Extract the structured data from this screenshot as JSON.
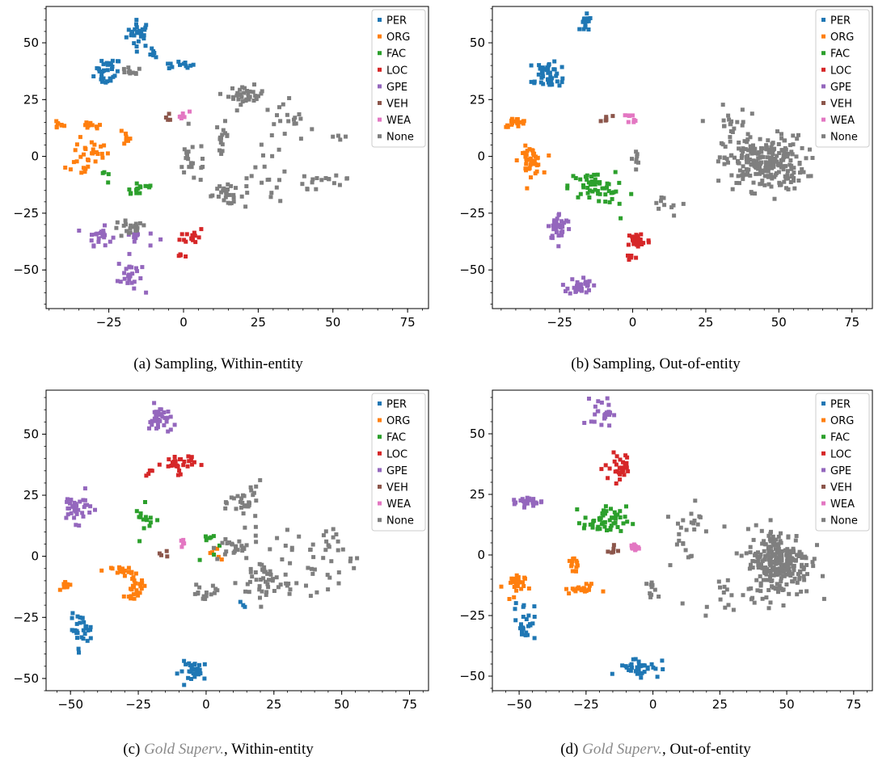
{
  "legend_entries": [
    "PER",
    "ORG",
    "FAC",
    "LOC",
    "GPE",
    "VEH",
    "WEA",
    "None"
  ],
  "colors": {
    "PER": "#1f77b4",
    "ORG": "#ff7f0e",
    "FAC": "#2ca02c",
    "LOC": "#d62728",
    "GPE": "#9467bd",
    "VEH": "#8c564b",
    "WEA": "#e377c2",
    "None": "#7f7f7f"
  },
  "captions": [
    {
      "pre": "(a) Sampling, Within-entity",
      "gold": "",
      "post": ""
    },
    {
      "pre": "(b) Sampling, Out-of-entity",
      "gold": "",
      "post": ""
    },
    {
      "pre": "(c) ",
      "gold": "Gold Superv.",
      "post": ", Within-entity"
    },
    {
      "pre": "(d) ",
      "gold": "Gold Superv.",
      "post": ", Out-of-entity"
    }
  ],
  "chart_data": [
    {
      "type": "scatter",
      "title": "",
      "xlim": [
        -46,
        82
      ],
      "ylim": [
        -67,
        66
      ],
      "xticks": [
        -25,
        0,
        25,
        50,
        75
      ],
      "yticks": [
        -50,
        -25,
        0,
        25,
        50
      ],
      "legend": "top-right",
      "clusters": [
        {
          "label": "PER",
          "cx": -15,
          "cy": 54,
          "sx": 2,
          "sy": 3,
          "n": 28
        },
        {
          "label": "PER",
          "cx": -25,
          "cy": 39,
          "sx": 2,
          "sy": 2,
          "n": 22
        },
        {
          "label": "PER",
          "cx": -26,
          "cy": 34,
          "sx": 2,
          "sy": 1,
          "n": 10
        },
        {
          "label": "PER",
          "cx": -2,
          "cy": 40,
          "sx": 3,
          "sy": 1,
          "n": 12
        },
        {
          "label": "PER",
          "cx": -10,
          "cy": 45,
          "sx": 1,
          "sy": 1,
          "n": 6
        },
        {
          "label": "ORG",
          "cx": -42,
          "cy": 14,
          "sx": 1,
          "sy": 1,
          "n": 8
        },
        {
          "label": "ORG",
          "cx": -31,
          "cy": 13,
          "sx": 2,
          "sy": 1,
          "n": 10
        },
        {
          "label": "ORG",
          "cx": -31,
          "cy": 2,
          "sx": 3,
          "sy": 3,
          "n": 25
        },
        {
          "label": "ORG",
          "cx": -35,
          "cy": -6,
          "sx": 2,
          "sy": 1,
          "n": 8
        },
        {
          "label": "ORG",
          "cx": -20,
          "cy": 9,
          "sx": 2,
          "sy": 2,
          "n": 8
        },
        {
          "label": "FAC",
          "cx": -15,
          "cy": -14,
          "sx": 3,
          "sy": 2,
          "n": 15
        },
        {
          "label": "FAC",
          "cx": -25,
          "cy": -9,
          "sx": 2,
          "sy": 2,
          "n": 4
        },
        {
          "label": "LOC",
          "cx": 3,
          "cy": -35,
          "sx": 2,
          "sy": 2,
          "n": 15
        },
        {
          "label": "LOC",
          "cx": -1,
          "cy": -44,
          "sx": 1,
          "sy": 1,
          "n": 4
        },
        {
          "label": "GPE",
          "cx": -28,
          "cy": -35,
          "sx": 2,
          "sy": 2,
          "n": 20
        },
        {
          "label": "GPE",
          "cx": -18,
          "cy": -52,
          "sx": 2,
          "sy": 4,
          "n": 25
        },
        {
          "label": "GPE",
          "cx": -16,
          "cy": -36,
          "sx": 3,
          "sy": 2,
          "n": 10
        },
        {
          "label": "VEH",
          "cx": -5,
          "cy": 17,
          "sx": 1,
          "sy": 1,
          "n": 4
        },
        {
          "label": "WEA",
          "cx": 0,
          "cy": 18,
          "sx": 1,
          "sy": 1,
          "n": 6
        },
        {
          "label": "None",
          "cx": 21,
          "cy": 27,
          "sx": 3,
          "sy": 2,
          "n": 35
        },
        {
          "label": "None",
          "cx": 13,
          "cy": 9,
          "sx": 1,
          "sy": 3,
          "n": 15
        },
        {
          "label": "None",
          "cx": 14,
          "cy": -17,
          "sx": 3,
          "sy": 2,
          "n": 25
        },
        {
          "label": "None",
          "cx": 34,
          "cy": 10,
          "sx": 5,
          "sy": 8,
          "n": 25
        },
        {
          "label": "None",
          "cx": 45,
          "cy": -10,
          "sx": 8,
          "sy": 4,
          "n": 20
        },
        {
          "label": "None",
          "cx": 3,
          "cy": -2,
          "sx": 3,
          "sy": 5,
          "n": 20
        },
        {
          "label": "None",
          "cx": -18,
          "cy": 37,
          "sx": 2,
          "sy": 1,
          "n": 10
        },
        {
          "label": "None",
          "cx": -18,
          "cy": -32,
          "sx": 3,
          "sy": 2,
          "n": 20
        },
        {
          "label": "None",
          "cx": 25,
          "cy": -15,
          "sx": 5,
          "sy": 3,
          "n": 12
        },
        {
          "label": "None",
          "cx": 52,
          "cy": 9,
          "sx": 2,
          "sy": 1,
          "n": 4
        }
      ]
    },
    {
      "type": "scatter",
      "title": "",
      "xlim": [
        -48,
        82
      ],
      "ylim": [
        -67,
        66
      ],
      "xticks": [
        -25,
        0,
        25,
        50,
        75
      ],
      "yticks": [
        -50,
        -25,
        0,
        25,
        50
      ],
      "legend": "top-right",
      "clusters": [
        {
          "label": "PER",
          "cx": -16,
          "cy": 58,
          "sx": 1,
          "sy": 2,
          "n": 18
        },
        {
          "label": "PER",
          "cx": -29,
          "cy": 38,
          "sx": 2,
          "sy": 2,
          "n": 30
        },
        {
          "label": "PER",
          "cx": -28,
          "cy": 33,
          "sx": 3,
          "sy": 1,
          "n": 20
        },
        {
          "label": "ORG",
          "cx": -40,
          "cy": 15,
          "sx": 2,
          "sy": 1,
          "n": 20
        },
        {
          "label": "ORG",
          "cx": -35,
          "cy": -2,
          "sx": 2,
          "sy": 3,
          "n": 40
        },
        {
          "label": "FAC",
          "cx": -14,
          "cy": -13,
          "sx": 4,
          "sy": 3,
          "n": 45
        },
        {
          "label": "FAC",
          "cx": -7,
          "cy": -20,
          "sx": 4,
          "sy": 4,
          "n": 10
        },
        {
          "label": "LOC",
          "cx": 2,
          "cy": -37,
          "sx": 2,
          "sy": 2,
          "n": 30
        },
        {
          "label": "LOC",
          "cx": -1,
          "cy": -44,
          "sx": 1,
          "sy": 1,
          "n": 6
        },
        {
          "label": "GPE",
          "cx": -25,
          "cy": -31,
          "sx": 2,
          "sy": 3,
          "n": 35
        },
        {
          "label": "GPE",
          "cx": -18,
          "cy": -57,
          "sx": 2,
          "sy": 2,
          "n": 30
        },
        {
          "label": "VEH",
          "cx": -9,
          "cy": 17,
          "sx": 1,
          "sy": 1,
          "n": 6
        },
        {
          "label": "WEA",
          "cx": 0,
          "cy": 17,
          "sx": 1,
          "sy": 1,
          "n": 8
        },
        {
          "label": "None",
          "cx": 45,
          "cy": -3,
          "sx": 7,
          "sy": 6,
          "n": 240
        },
        {
          "label": "None",
          "cx": 33,
          "cy": 14,
          "sx": 3,
          "sy": 4,
          "n": 20
        },
        {
          "label": "None",
          "cx": 1,
          "cy": -1,
          "sx": 1,
          "sy": 2,
          "n": 8
        },
        {
          "label": "None",
          "cx": 12,
          "cy": -20,
          "sx": 6,
          "sy": 3,
          "n": 10
        }
      ]
    },
    {
      "type": "scatter",
      "title": "",
      "xlim": [
        -59,
        82
      ],
      "ylim": [
        -55,
        68
      ],
      "xticks": [
        -50,
        -25,
        0,
        25,
        50,
        75
      ],
      "yticks": [
        -50,
        -25,
        0,
        25,
        50
      ],
      "legend": "top-right",
      "clusters": [
        {
          "label": "PER",
          "cx": -46,
          "cy": -30,
          "sx": 2,
          "sy": 3,
          "n": 30
        },
        {
          "label": "PER",
          "cx": -4,
          "cy": -47,
          "sx": 3,
          "sy": 2,
          "n": 30
        },
        {
          "label": "PER",
          "cx": 14,
          "cy": -20,
          "sx": 1,
          "sy": 1,
          "n": 3
        },
        {
          "label": "ORG",
          "cx": -51,
          "cy": -12,
          "sx": 1,
          "sy": 1,
          "n": 10
        },
        {
          "label": "ORG",
          "cx": -31,
          "cy": -6,
          "sx": 2,
          "sy": 1,
          "n": 20
        },
        {
          "label": "ORG",
          "cx": -26,
          "cy": -13,
          "sx": 2,
          "sy": 2,
          "n": 25
        },
        {
          "label": "ORG",
          "cx": 4,
          "cy": 2,
          "sx": 2,
          "sy": 2,
          "n": 6
        },
        {
          "label": "FAC",
          "cx": -22,
          "cy": 15,
          "sx": 2,
          "sy": 3,
          "n": 14
        },
        {
          "label": "FAC",
          "cx": 1,
          "cy": 5,
          "sx": 3,
          "sy": 3,
          "n": 8
        },
        {
          "label": "LOC",
          "cx": -10,
          "cy": 38,
          "sx": 3,
          "sy": 2,
          "n": 30
        },
        {
          "label": "LOC",
          "cx": -21,
          "cy": 34,
          "sx": 1,
          "sy": 1,
          "n": 5
        },
        {
          "label": "GPE",
          "cx": -17,
          "cy": 56,
          "sx": 2,
          "sy": 3,
          "n": 35
        },
        {
          "label": "GPE",
          "cx": -48,
          "cy": 20,
          "sx": 3,
          "sy": 3,
          "n": 35
        },
        {
          "label": "VEH",
          "cx": -16,
          "cy": 1,
          "sx": 1,
          "sy": 1,
          "n": 4
        },
        {
          "label": "WEA",
          "cx": -8,
          "cy": 4,
          "sx": 1,
          "sy": 1,
          "n": 5
        },
        {
          "label": "None",
          "cx": 15,
          "cy": 22,
          "sx": 3,
          "sy": 4,
          "n": 30
        },
        {
          "label": "None",
          "cx": 10,
          "cy": 3,
          "sx": 5,
          "sy": 3,
          "n": 25
        },
        {
          "label": "None",
          "cx": 22,
          "cy": -10,
          "sx": 5,
          "sy": 5,
          "n": 45
        },
        {
          "label": "None",
          "cx": 38,
          "cy": -5,
          "sx": 8,
          "sy": 5,
          "n": 30
        },
        {
          "label": "None",
          "cx": 0,
          "cy": -15,
          "sx": 3,
          "sy": 2,
          "n": 15
        },
        {
          "label": "None",
          "cx": 45,
          "cy": 7,
          "sx": 5,
          "sy": 3,
          "n": 15
        }
      ]
    },
    {
      "type": "scatter",
      "title": "",
      "xlim": [
        -60,
        82
      ],
      "ylim": [
        -56,
        68
      ],
      "xticks": [
        -50,
        -25,
        0,
        25,
        50,
        75
      ],
      "yticks": [
        -50,
        -25,
        0,
        25,
        50
      ],
      "legend": "top-right",
      "clusters": [
        {
          "label": "PER",
          "cx": -48,
          "cy": -27,
          "sx": 2,
          "sy": 4,
          "n": 25
        },
        {
          "label": "PER",
          "cx": -5,
          "cy": -46,
          "sx": 4,
          "sy": 2,
          "n": 35
        },
        {
          "label": "ORG",
          "cx": -52,
          "cy": -13,
          "sx": 2,
          "sy": 3,
          "n": 25
        },
        {
          "label": "ORG",
          "cx": -27,
          "cy": -14,
          "sx": 3,
          "sy": 1,
          "n": 20
        },
        {
          "label": "ORG",
          "cx": -30,
          "cy": -5,
          "sx": 1,
          "sy": 2,
          "n": 12
        },
        {
          "label": "FAC",
          "cx": -18,
          "cy": 14,
          "sx": 4,
          "sy": 3,
          "n": 50
        },
        {
          "label": "LOC",
          "cx": -12,
          "cy": 36,
          "sx": 3,
          "sy": 3,
          "n": 30
        },
        {
          "label": "GPE",
          "cx": -19,
          "cy": 59,
          "sx": 2,
          "sy": 3,
          "n": 25
        },
        {
          "label": "GPE",
          "cx": -47,
          "cy": 22,
          "sx": 3,
          "sy": 1,
          "n": 25
        },
        {
          "label": "VEH",
          "cx": -15,
          "cy": 2,
          "sx": 1,
          "sy": 1,
          "n": 6
        },
        {
          "label": "WEA",
          "cx": -7,
          "cy": 3,
          "sx": 1,
          "sy": 1,
          "n": 12
        },
        {
          "label": "None",
          "cx": 47,
          "cy": -3,
          "sx": 6,
          "sy": 7,
          "n": 260
        },
        {
          "label": "None",
          "cx": 12,
          "cy": 10,
          "sx": 3,
          "sy": 8,
          "n": 25
        },
        {
          "label": "None",
          "cx": 25,
          "cy": -16,
          "sx": 5,
          "sy": 3,
          "n": 15
        },
        {
          "label": "None",
          "cx": 0,
          "cy": -15,
          "sx": 1,
          "sy": 2,
          "n": 10
        }
      ]
    }
  ]
}
